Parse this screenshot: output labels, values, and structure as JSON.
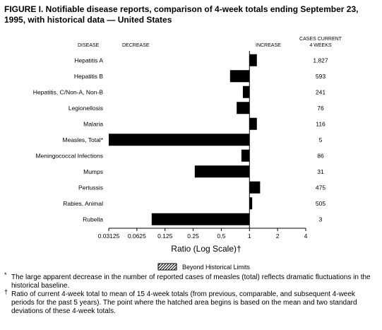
{
  "figure": {
    "title": "FIGURE I. Notifiable disease reports, comparison of 4-week totals ending September 23, 1995, with historical data — United States"
  },
  "headers": {
    "disease": "DISEASE",
    "decrease": "DECREASE",
    "increase": "INCREASE",
    "cases_line1": "CASES CURRENT",
    "cases_line2": "4 WEEKS"
  },
  "legend": {
    "beyond_limits": "Beyond Historical Limits"
  },
  "footnotes": {
    "star_mark": "*",
    "star": "The large apparent decrease in the number of reported cases of measles (total) reflects dramatic fluctuations in the historical baseline.",
    "dagger_mark": "†",
    "dagger": "Ratio of current 4-week total to mean of 15 4-week totals (from previous, comparable, and subsequent 4-week periods for the past 5 years). The point where the hatched area begins is based on the mean and two standard deviations of these 4-week totals."
  },
  "chart_data": {
    "type": "bar",
    "orientation": "horizontal",
    "x_scale": "log2",
    "xlabel": "Ratio (Log Scale)†",
    "xlim": [
      0.03125,
      4
    ],
    "ticks": [
      "0.03125",
      "0.0625",
      "0.125",
      "0.25",
      "0.5",
      "1",
      "2",
      "4"
    ],
    "tick_values": [
      0.03125,
      0.0625,
      0.125,
      0.25,
      0.5,
      1,
      2,
      4
    ],
    "baseline": 1,
    "categories": [
      "Hepatitis A",
      "Hepatitis B",
      "Hepatitis, C/Non-A, Non-B",
      "Legionellosis",
      "Malaria",
      "Measles, Total*",
      "Meningococcal Infections",
      "Mumps",
      "Pertussis",
      "Rabies, Animal",
      "Rubella"
    ],
    "values": [
      1.2,
      0.62,
      0.85,
      0.73,
      1.2,
      0.03125,
      0.82,
      0.26,
      1.3,
      1.07,
      0.09
    ],
    "cases_current_4_weeks": [
      "1,827",
      "593",
      "241",
      "76",
      "116",
      "5",
      "86",
      "31",
      "475",
      "505",
      "3"
    ],
    "bar_color": "#000000"
  }
}
